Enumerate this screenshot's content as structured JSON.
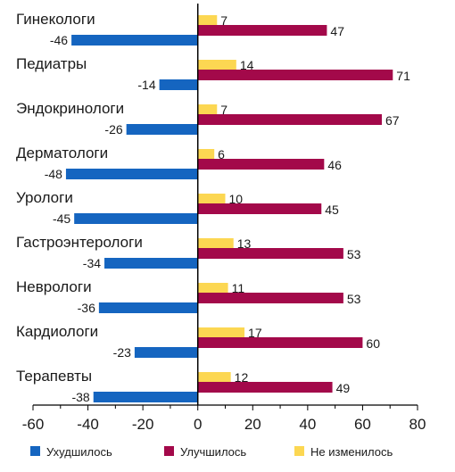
{
  "chart_data": {
    "type": "bar",
    "orientation": "horizontal",
    "categories": [
      "Гинекологи",
      "Педиатры",
      "Эндокринологи",
      "Дерматологи",
      "Урологи",
      "Гастроэнтерологи",
      "Неврологи",
      "Кардиологи",
      "Терапевты"
    ],
    "series": [
      {
        "name": "Ухудшилось",
        "color": "#1565c0",
        "values": [
          -46,
          -14,
          -26,
          -48,
          -45,
          -34,
          -36,
          -23,
          -38
        ]
      },
      {
        "name": "Улучшилось",
        "color": "#a3094a",
        "values": [
          47,
          71,
          67,
          46,
          45,
          53,
          53,
          60,
          49
        ]
      },
      {
        "name": "Не изменилось",
        "color": "#fcd752",
        "values": [
          7,
          14,
          7,
          6,
          10,
          13,
          11,
          17,
          12
        ]
      }
    ],
    "xlim": [
      -60,
      80
    ],
    "xticks": [
      -60,
      -40,
      -20,
      0,
      20,
      40,
      60,
      80
    ],
    "grid": false,
    "legend_position": "bottom"
  }
}
